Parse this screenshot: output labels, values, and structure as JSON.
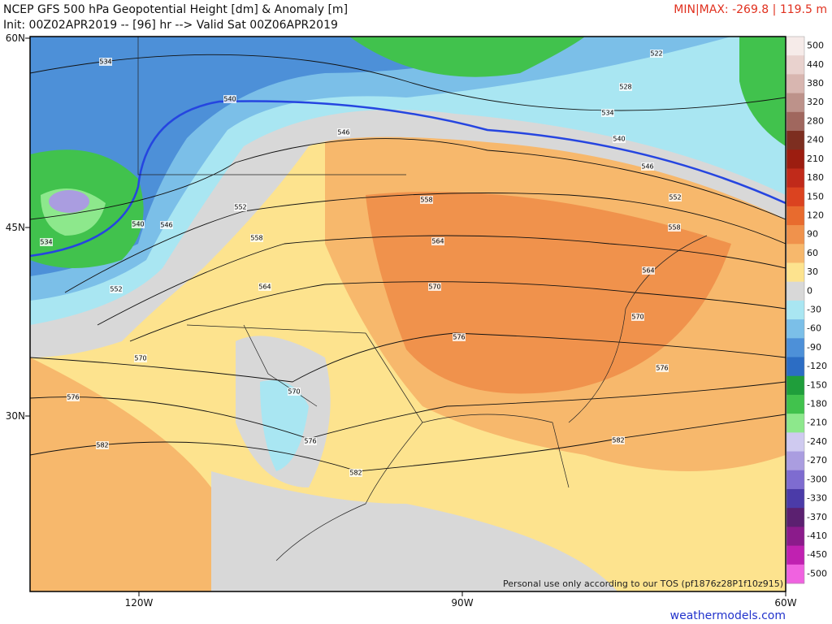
{
  "header": {
    "title": "NCEP GFS 500 hPa Geopotential Height [dm] & Anomaly [m]",
    "init": "Init: 00Z02APR2019 -- [96] hr --> Valid Sat 00Z06APR2019",
    "minmax": "MIN|MAX: -269.8 | 119.5 m"
  },
  "map": {
    "lat_labels": [
      "60N",
      "45N",
      "30N"
    ],
    "lon_labels": [
      "120W",
      "90W",
      "60W"
    ],
    "contour_labels": [
      "534",
      "522",
      "528",
      "534",
      "540",
      "540",
      "546",
      "546",
      "552",
      "552",
      "558",
      "558",
      "558",
      "540",
      "546",
      "534",
      "564",
      "564",
      "552",
      "564",
      "570",
      "570",
      "576",
      "570",
      "576",
      "570",
      "576",
      "582",
      "576",
      "582",
      "582"
    ],
    "notice": "Personal use only according to our TOS (pf1876z28P1f10z915)"
  },
  "colorbar": {
    "labels": [
      "500",
      "440",
      "380",
      "320",
      "280",
      "240",
      "210",
      "180",
      "150",
      "120",
      "90",
      "60",
      "30",
      "0",
      "-30",
      "-60",
      "-90",
      "-120",
      "-150",
      "-180",
      "-210",
      "-240",
      "-270",
      "-300",
      "-330",
      "-370",
      "-410",
      "-450",
      "-500"
    ],
    "colors": [
      "#f6ebe9",
      "#e9d2ce",
      "#d8b6b0",
      "#bd928a",
      "#a0675e",
      "#7d2e20",
      "#9c1d10",
      "#c02a1a",
      "#db4320",
      "#e86b2e",
      "#f0924c",
      "#f7b86c",
      "#fde38e",
      "#d8d8d8",
      "#a9e6f2",
      "#7bbfe8",
      "#4d90d8",
      "#2c6dc4",
      "#1f9e3b",
      "#41c24d",
      "#8de88c",
      "#cfcaf0",
      "#aa9de0",
      "#7e6cd0",
      "#4b3ba8",
      "#5b2070",
      "#8b1b8b",
      "#c021b1",
      "#f062e0"
    ]
  },
  "footer": {
    "site": "weathermodels.com"
  }
}
